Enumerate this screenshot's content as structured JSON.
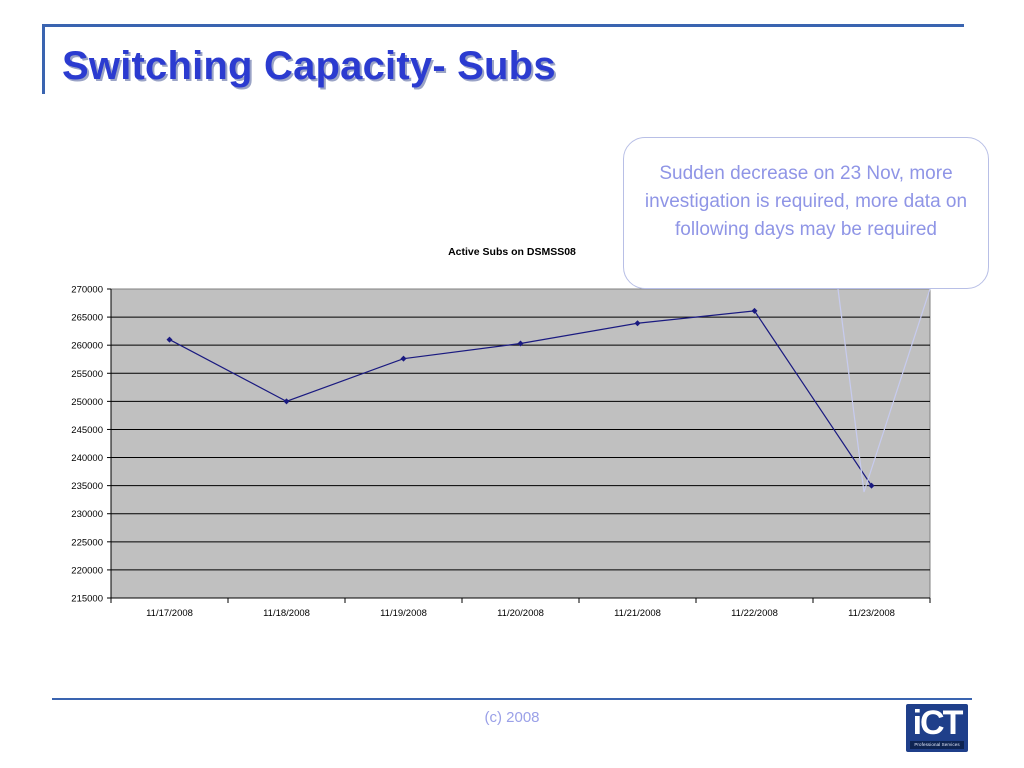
{
  "slide": {
    "title": "Switching Capacity- Subs",
    "callout_text": "Sudden decrease on 23 Nov, more investigation is required, more data on following days may be required",
    "footer_text": "(c) 2008",
    "logo_text": "iCT",
    "logo_tagline": "Professional Services"
  },
  "colors": {
    "title": "#2b3bd0",
    "accent_rule": "#3a64b0",
    "plot_bg": "#c0c0c0",
    "series": "#1a1a80",
    "callout_text": "#8f95e6"
  },
  "chart_data": {
    "type": "line",
    "title": "Active Subs on DSMSS08",
    "xlabel": "",
    "ylabel": "",
    "categories": [
      "11/17/2008",
      "11/18/2008",
      "11/19/2008",
      "11/20/2008",
      "11/21/2008",
      "11/22/2008",
      "11/23/2008"
    ],
    "series": [
      {
        "values": [
          261000,
          250000,
          257600,
          260300,
          263900,
          266100,
          235000
        ]
      }
    ],
    "ylim": [
      215000,
      270000
    ],
    "yticks": [
      270000,
      265000,
      260000,
      255000,
      250000,
      245000,
      240000,
      235000,
      230000,
      225000,
      220000,
      215000
    ],
    "grid": true,
    "legend": "none"
  }
}
